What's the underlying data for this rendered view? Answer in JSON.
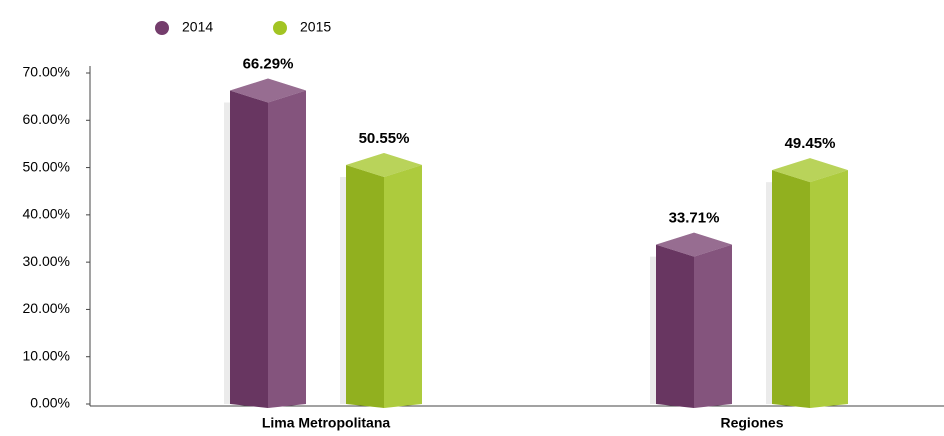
{
  "chart_data": {
    "type": "bar3d",
    "categories": [
      "Lima Metropolitana",
      "Regiones"
    ],
    "series": [
      {
        "name": "2014",
        "color": "#743d6c",
        "values": [
          66.29,
          33.71
        ],
        "value_labels": [
          "66.29%",
          "33.71%"
        ]
      },
      {
        "name": "2015",
        "color": "#a2c423",
        "values": [
          50.55,
          49.45
        ],
        "value_labels": [
          "50.55%",
          "49.45%"
        ]
      }
    ],
    "ylim": [
      0,
      70
    ],
    "yticks": [
      {
        "value": 0,
        "label": "0.00%"
      },
      {
        "value": 10,
        "label": "10.00%"
      },
      {
        "value": 20,
        "label": "20.00%"
      },
      {
        "value": 30,
        "label": "30.00%"
      },
      {
        "value": 40,
        "label": "40.00%"
      },
      {
        "value": 50,
        "label": "50.00%"
      },
      {
        "value": 60,
        "label": "60.00%"
      },
      {
        "value": 70,
        "label": "70.00%"
      }
    ],
    "legend": "top-left"
  }
}
